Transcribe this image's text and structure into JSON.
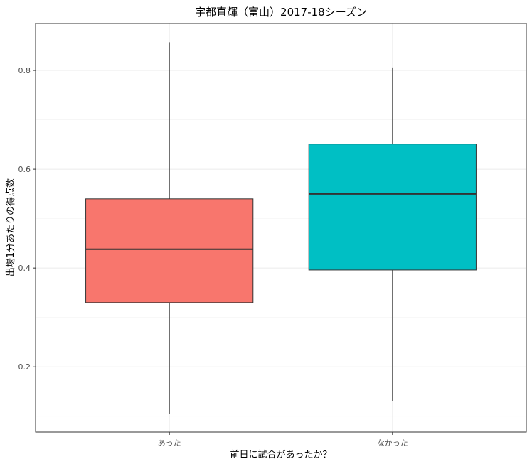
{
  "chart_data": {
    "type": "box",
    "title": "宇都直輝（富山）2017-18シーズン",
    "xlabel": "前日に試合があったか？",
    "ylabel": "出場1分あたりの得点数",
    "categories": [
      "あった",
      "なかった"
    ],
    "boxes": [
      {
        "category": "あった",
        "min": 0.105,
        "q1": 0.33,
        "median": 0.438,
        "q3": 0.54,
        "max": 0.857,
        "color": "#F8766D"
      },
      {
        "category": "なかった",
        "min": 0.13,
        "q1": 0.396,
        "median": 0.55,
        "q3": 0.651,
        "max": 0.806,
        "color": "#00BFC4"
      }
    ],
    "ylim": [
      0.068,
      0.895
    ],
    "yticks": [
      0.2,
      0.4,
      0.6,
      0.8
    ],
    "ytick_labels": [
      "0.2",
      "0.4",
      "0.6",
      "0.8"
    ],
    "grid": true,
    "legend": "none",
    "theme": {
      "panel_border": "#333333",
      "grid_major": "#ebebeb",
      "grid_minor": "#f5f5f5",
      "box_outline": "#333333",
      "whisker": "#333333"
    }
  }
}
